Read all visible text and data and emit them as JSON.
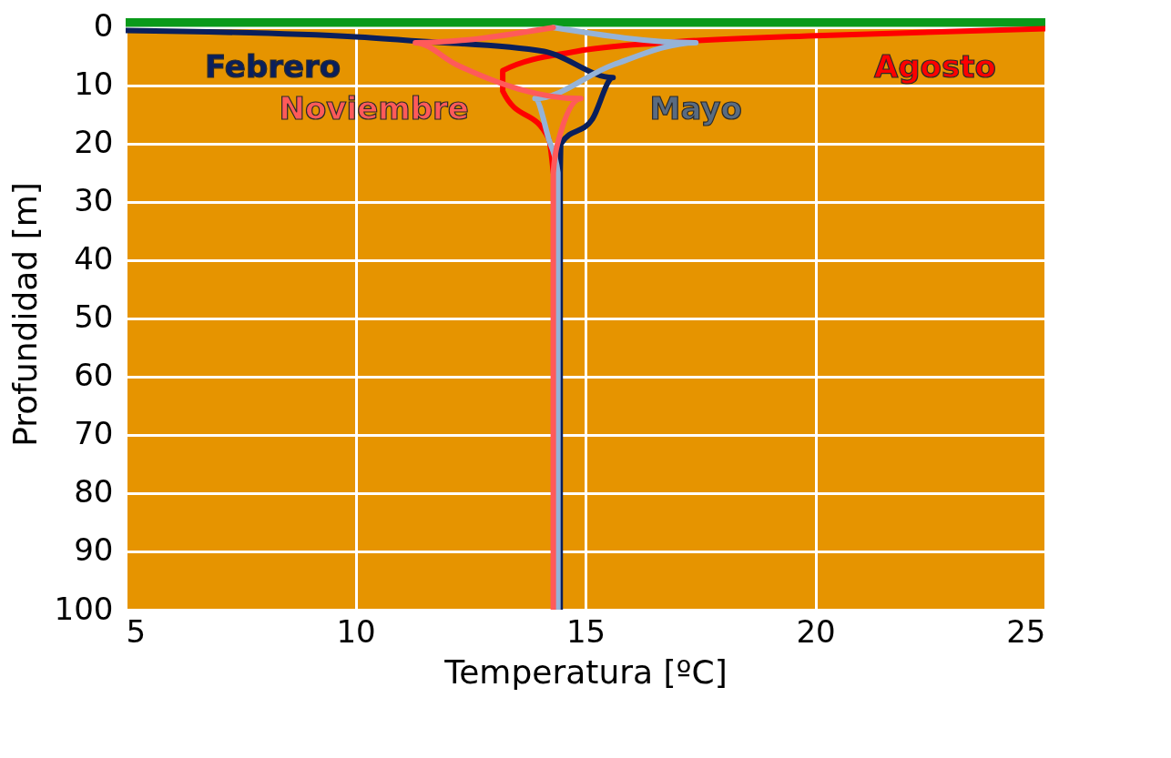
{
  "chart_data": {
    "type": "line",
    "xlabel": "Temperatura [ºC]",
    "ylabel": "Profundidad [m]",
    "xlim": [
      5,
      25
    ],
    "xticks": [
      5,
      10,
      15,
      20,
      25
    ],
    "ylim": [
      100,
      -1.5
    ],
    "yticks": [
      0,
      10,
      20,
      30,
      40,
      50,
      60,
      70,
      80,
      90,
      100
    ],
    "grid": true,
    "marker": "none",
    "line_style": "solid",
    "bands": [
      {
        "axis": "y",
        "from": -1.5,
        "to": 0,
        "color": "#0a9a1a"
      }
    ],
    "series": [
      {
        "name": "Agosto",
        "color": "#ff0000",
        "x": [
          25,
          20,
          16.7,
          14.8,
          13.2,
          13.2,
          14.2,
          14.3
        ],
        "values": [
          0.3,
          1.5,
          2.7,
          4.2,
          7.5,
          11,
          19.2,
          25
        ]
      },
      {
        "name": "Febrero",
        "color": "#0a1f5c",
        "x": [
          5,
          10,
          11.3,
          14.1,
          15.6,
          15.15,
          14.47,
          14.45,
          14.45
        ],
        "values": [
          0.6,
          1.7,
          2.4,
          4.2,
          8.7,
          15.8,
          20,
          25,
          100
        ]
      },
      {
        "name": "Mayo",
        "color": "#95b3d7",
        "x": [
          14.3,
          17.4,
          15.6,
          13.9,
          14.2,
          14.4,
          14.4
        ],
        "values": [
          0.1,
          2.7,
          6.5,
          12.3,
          19.2,
          25,
          100
        ]
      },
      {
        "name": "Noviembre",
        "color": "#ff5a5a",
        "x": [
          14.3,
          11.3,
          12.2,
          14.9,
          14.4,
          14.3,
          14.3
        ],
        "values": [
          0.1,
          2.7,
          6.5,
          12.3,
          19.8,
          25,
          100
        ]
      }
    ]
  }
}
